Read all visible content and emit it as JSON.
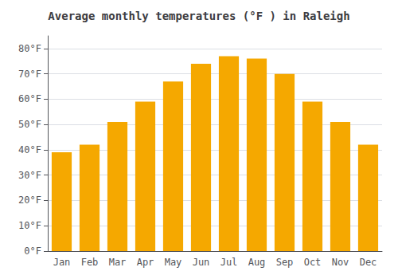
{
  "chart_data": {
    "type": "bar",
    "title": "Average monthly temperatures (°F ) in Raleigh",
    "categories": [
      "Jan",
      "Feb",
      "Mar",
      "Apr",
      "May",
      "Jun",
      "Jul",
      "Aug",
      "Sep",
      "Oct",
      "Nov",
      "Dec"
    ],
    "values": [
      39,
      42,
      51,
      59,
      67,
      74,
      77,
      76,
      70,
      59,
      51,
      42
    ],
    "color": "#F5A800",
    "ylim": [
      0,
      85
    ],
    "yticks": [
      {
        "value": 0,
        "label": "0°F"
      },
      {
        "value": 10,
        "label": "10°F"
      },
      {
        "value": 20,
        "label": "20°F"
      },
      {
        "value": 30,
        "label": "30°F"
      },
      {
        "value": 40,
        "label": "40°F"
      },
      {
        "value": 50,
        "label": "50°F"
      },
      {
        "value": 60,
        "label": "60°F"
      },
      {
        "value": 70,
        "label": "70°F"
      },
      {
        "value": 80,
        "label": "80°F"
      }
    ],
    "grid": true
  }
}
